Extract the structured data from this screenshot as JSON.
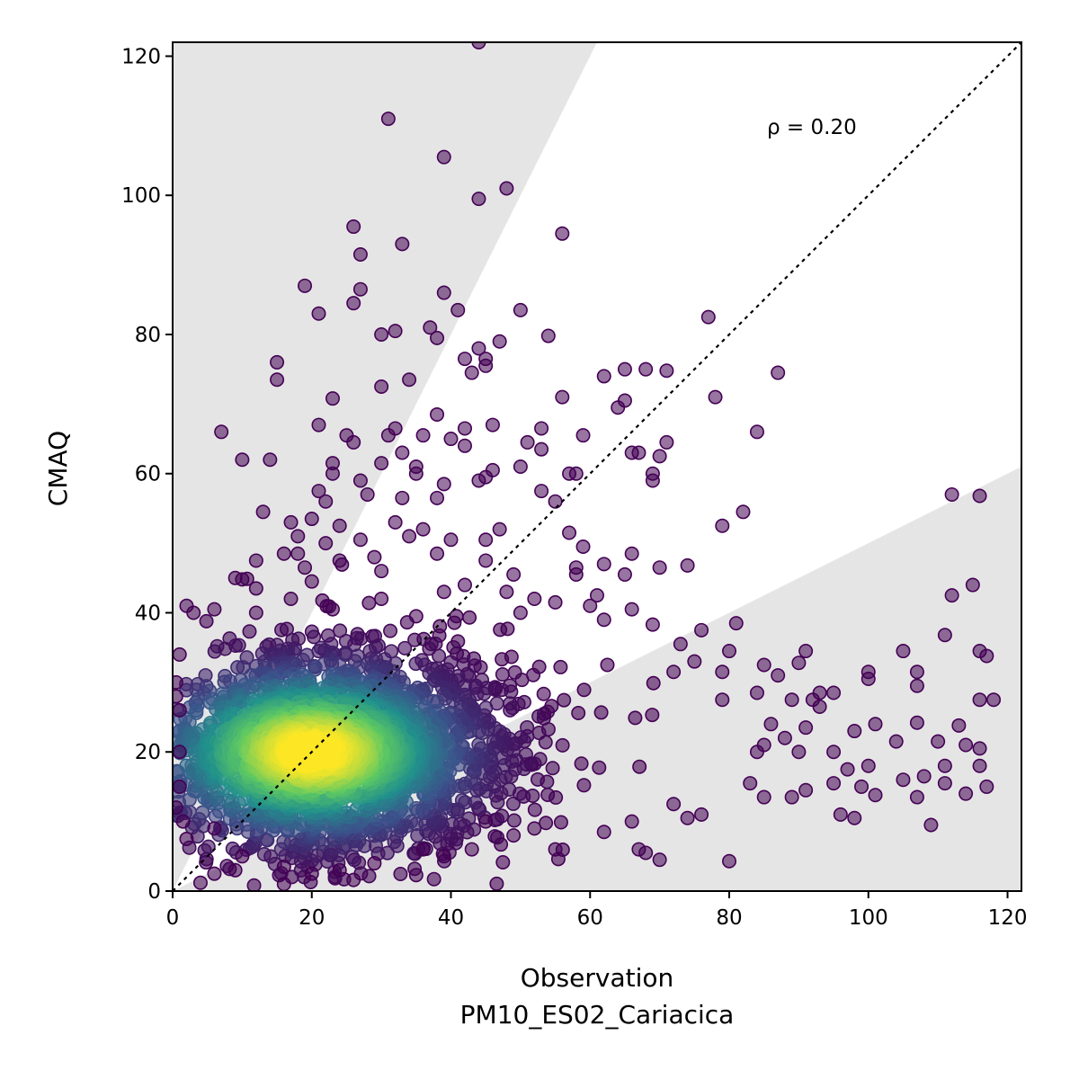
{
  "chart_data": {
    "type": "scatter",
    "title": "",
    "xlabel": "Observation",
    "xlabel_sub": "PM10_ES02_Cariacica",
    "ylabel": "CMAQ",
    "xlim": [
      0,
      122
    ],
    "ylim": [
      0,
      122
    ],
    "xticks": [
      "0",
      "20",
      "40",
      "60",
      "80",
      "100",
      "120"
    ],
    "yticks": [
      "0",
      "20",
      "40",
      "60",
      "80",
      "100",
      "120"
    ],
    "annotation": "ρ = 0.20",
    "reference_line": {
      "style": "dotted",
      "from": [
        0,
        0
      ],
      "to": [
        122,
        122
      ]
    },
    "shaded_regions": [
      {
        "description": "upper factor-of-2 band",
        "vertices": [
          [
            0,
            0
          ],
          [
            61,
            122
          ],
          [
            0,
            122
          ]
        ]
      },
      {
        "description": "lower factor-of-2 band",
        "vertices": [
          [
            0,
            0
          ],
          [
            122,
            0
          ],
          [
            122,
            61
          ]
        ]
      }
    ],
    "colormap": "viridis (point density)",
    "colors": {
      "low_density": "#440154",
      "mid_density": "#21918c",
      "high_density": "#fde725",
      "band": "#e5e5e5"
    },
    "series": [
      {
        "points": [
          [
            44,
            122
          ],
          [
            31,
            111
          ],
          [
            39,
            105.5
          ],
          [
            48,
            101
          ],
          [
            44,
            99.5
          ],
          [
            26,
            95.5
          ],
          [
            56,
            94.5
          ],
          [
            33,
            93
          ],
          [
            27,
            91.5
          ],
          [
            19,
            87
          ],
          [
            27,
            86.5
          ],
          [
            39,
            86
          ],
          [
            26,
            84.5
          ],
          [
            41,
            83.5
          ],
          [
            21,
            83
          ],
          [
            50,
            83.5
          ],
          [
            77,
            82.5
          ],
          [
            37,
            81
          ],
          [
            32,
            80.5
          ],
          [
            30,
            80
          ],
          [
            38,
            79.5
          ],
          [
            54,
            79.8
          ],
          [
            47,
            79
          ],
          [
            44,
            78
          ],
          [
            45,
            76.5
          ],
          [
            42,
            76.5
          ],
          [
            15,
            76
          ],
          [
            45,
            75.5
          ],
          [
            65,
            75
          ],
          [
            68,
            75
          ],
          [
            71,
            74.8
          ],
          [
            87,
            74.5
          ],
          [
            43,
            74.5
          ],
          [
            62,
            74
          ],
          [
            15,
            73.5
          ],
          [
            34,
            73.5
          ],
          [
            30,
            72.5
          ],
          [
            78,
            71
          ],
          [
            56,
            71
          ],
          [
            23,
            70.8
          ],
          [
            65,
            70.5
          ],
          [
            64,
            69.5
          ],
          [
            38,
            68.5
          ],
          [
            32,
            66.5
          ],
          [
            21,
            67
          ],
          [
            46,
            67
          ],
          [
            53,
            66.5
          ],
          [
            42,
            66.5
          ],
          [
            7,
            66
          ],
          [
            84,
            66
          ],
          [
            25,
            65.5
          ],
          [
            59,
            65.5
          ],
          [
            31,
            65.5
          ],
          [
            36,
            65.5
          ],
          [
            40,
            65
          ],
          [
            26,
            64.5
          ],
          [
            51,
            64.5
          ],
          [
            71,
            64.5
          ],
          [
            42,
            64
          ],
          [
            53,
            63.5
          ],
          [
            66,
            63
          ],
          [
            67,
            63
          ],
          [
            33,
            63
          ],
          [
            70,
            62.5
          ],
          [
            10,
            62
          ],
          [
            14,
            62
          ],
          [
            23,
            61.5
          ],
          [
            30,
            61.5
          ],
          [
            35,
            61
          ],
          [
            50,
            61
          ],
          [
            46,
            60.5
          ],
          [
            57,
            60
          ],
          [
            23,
            60
          ],
          [
            45,
            59.5
          ],
          [
            69,
            59
          ],
          [
            69,
            60
          ],
          [
            35,
            60
          ],
          [
            58,
            60
          ],
          [
            27,
            59
          ],
          [
            39,
            58.5
          ],
          [
            44,
            59
          ],
          [
            28,
            57
          ],
          [
            21,
            57.5
          ],
          [
            53,
            57.5
          ],
          [
            112,
            57
          ],
          [
            116,
            56.8
          ],
          [
            33,
            56.5
          ],
          [
            38,
            56.5
          ],
          [
            22,
            56
          ],
          [
            55,
            56
          ],
          [
            13,
            54.5
          ],
          [
            82,
            54.5
          ],
          [
            20,
            53.5
          ],
          [
            17,
            53
          ],
          [
            32,
            53
          ],
          [
            79,
            52.5
          ],
          [
            24,
            52.5
          ],
          [
            36,
            52
          ],
          [
            47,
            52
          ],
          [
            57,
            51.5
          ],
          [
            18,
            51
          ],
          [
            34,
            51
          ],
          [
            40,
            50.5
          ],
          [
            45,
            50.5
          ],
          [
            27,
            50.5
          ],
          [
            22,
            50
          ],
          [
            59,
            49.5
          ],
          [
            16,
            48.5
          ],
          [
            18,
            48.5
          ],
          [
            38,
            48.5
          ],
          [
            66,
            48.5
          ],
          [
            29,
            48
          ],
          [
            12,
            47.5
          ],
          [
            24,
            47.5
          ],
          [
            45,
            47.5
          ],
          [
            62,
            47
          ],
          [
            70,
            46.5
          ],
          [
            74,
            46.8
          ],
          [
            58,
            46.5
          ],
          [
            19,
            46.5
          ],
          [
            30,
            46
          ],
          [
            49,
            45.5
          ],
          [
            58,
            45.5
          ],
          [
            65,
            45.5
          ],
          [
            9,
            45
          ],
          [
            10,
            44.8
          ],
          [
            20,
            44.5
          ],
          [
            42,
            44
          ],
          [
            115,
            44
          ],
          [
            12,
            43.5
          ],
          [
            39,
            43
          ],
          [
            48,
            43
          ],
          [
            61,
            42.5
          ],
          [
            112,
            42.5
          ],
          [
            17,
            42
          ],
          [
            30,
            42
          ],
          [
            52,
            42
          ],
          [
            55,
            41.5
          ],
          [
            60,
            41
          ],
          [
            2,
            41
          ],
          [
            6,
            40.5
          ],
          [
            66,
            40.5
          ],
          [
            3,
            40
          ],
          [
            12,
            40
          ],
          [
            23,
            40.5
          ],
          [
            35,
            39.5
          ],
          [
            50,
            40
          ],
          [
            62,
            39
          ],
          [
            76,
            37.5
          ],
          [
            69,
            38.3
          ],
          [
            81,
            38.5
          ],
          [
            73,
            35.5
          ],
          [
            80,
            34.5
          ],
          [
            91,
            34.5
          ],
          [
            105,
            34.5
          ],
          [
            116,
            34.5
          ],
          [
            111,
            36.8
          ],
          [
            117,
            33.8
          ],
          [
            75,
            33
          ],
          [
            85,
            32.5
          ],
          [
            100,
            31.5
          ],
          [
            107,
            31.5
          ],
          [
            87,
            31
          ],
          [
            90,
            32.8
          ],
          [
            79,
            31.5
          ],
          [
            72,
            31.5
          ],
          [
            84,
            28.5
          ],
          [
            93,
            28.5
          ],
          [
            95,
            28.5
          ],
          [
            100,
            30.5
          ],
          [
            92,
            27.5
          ],
          [
            118,
            27.5
          ],
          [
            116,
            27.5
          ],
          [
            107,
            29.5
          ],
          [
            79,
            27.5
          ],
          [
            89,
            27.5
          ],
          [
            93,
            26.5
          ],
          [
            98,
            23
          ],
          [
            101,
            24
          ],
          [
            113,
            23.8
          ],
          [
            107,
            24.2
          ],
          [
            86,
            24
          ],
          [
            91,
            23.5
          ],
          [
            88,
            22
          ],
          [
            85,
            21
          ],
          [
            84,
            20
          ],
          [
            90,
            20
          ],
          [
            95,
            20
          ],
          [
            104,
            21.5
          ],
          [
            110,
            21.5
          ],
          [
            116,
            20.5
          ],
          [
            114,
            21
          ],
          [
            97,
            17.5
          ],
          [
            100,
            18
          ],
          [
            111,
            18
          ],
          [
            116,
            18
          ],
          [
            105,
            16
          ],
          [
            101,
            13.8
          ],
          [
            108,
            16.5
          ],
          [
            91,
            14.5
          ],
          [
            95,
            15.5
          ],
          [
            99,
            15
          ],
          [
            111,
            15.5
          ],
          [
            117,
            15
          ],
          [
            114,
            14
          ],
          [
            96,
            11
          ],
          [
            98,
            10.5
          ],
          [
            109,
            9.5
          ],
          [
            107,
            13.5
          ],
          [
            85,
            13.5
          ],
          [
            89,
            13.5
          ],
          [
            80,
            4.3
          ],
          [
            83,
            15.5
          ],
          [
            72,
            12.5
          ],
          [
            74,
            10.5
          ],
          [
            76,
            11
          ],
          [
            70,
            4.5
          ],
          [
            67,
            6
          ],
          [
            55,
            6
          ],
          [
            68,
            5.5
          ],
          [
            45,
            10
          ],
          [
            6,
            2.5
          ],
          [
            4,
            1.2
          ],
          [
            26,
            1.6
          ],
          [
            16,
            1
          ],
          [
            35,
            2.3
          ],
          [
            2,
            7.5
          ],
          [
            6,
            9
          ],
          [
            10,
            5
          ],
          [
            9,
            3
          ],
          [
            16,
            3.5
          ],
          [
            20,
            2.5
          ],
          [
            24,
            3
          ],
          [
            29,
            4
          ],
          [
            39,
            5
          ],
          [
            43,
            6
          ],
          [
            49,
            8
          ],
          [
            52,
            9
          ],
          [
            62,
            8.5
          ],
          [
            66,
            10
          ],
          [
            36,
            6
          ],
          [
            1,
            20
          ],
          [
            1,
            15
          ],
          [
            1,
            26
          ],
          [
            1,
            34
          ],
          [
            0.5,
            12
          ],
          [
            0.5,
            28
          ],
          [
            0.5,
            30
          ],
          [
            1.5,
            10
          ]
        ]
      }
    ],
    "density_cluster": {
      "center": [
        20,
        20
      ],
      "spread_x": [
        2,
        60
      ],
      "spread_y": [
        3,
        42
      ]
    }
  }
}
